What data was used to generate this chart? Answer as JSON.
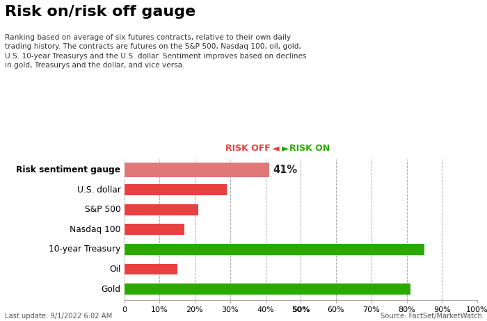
{
  "title": "Risk on/risk off gauge",
  "subtitle": "Ranking based on average of six futures contracts, relative to their own daily\ntrading history. The contracts are futures on the S&P 500, Nasdaq 100, oil, gold,\nU.S. 10-year Treasurys and the U.S. dollar. Sentiment improves based on declines\nin gold, Treasurys and the dollar, and vice versa.",
  "categories": [
    "Risk sentiment gauge",
    "U.S. dollar",
    "S&P 500",
    "Nasdaq 100",
    "10-year Treasury",
    "Oil",
    "Gold"
  ],
  "values": [
    41,
    29,
    21,
    17,
    85,
    15,
    81
  ],
  "colors": [
    "#e8878080",
    "#e84040",
    "#e84040",
    "#e84040",
    "#2aaa00",
    "#e84040",
    "#2aaa00"
  ],
  "gauge_color": "#e07878",
  "red_color": "#e84040",
  "green_color": "#2aaa00",
  "label_41": "41%",
  "risk_off_label": "RISK OFF",
  "risk_on_label": "RISK ON",
  "risk_off_color": "#e84040",
  "risk_on_color": "#2aaa00",
  "footer_left": "Last update: 9/1/2022 6:02 AM",
  "footer_right": "Source: FactSet/MarketWatch",
  "xlim": [
    0,
    100
  ],
  "xticks": [
    0,
    10,
    20,
    30,
    40,
    50,
    60,
    70,
    80,
    90,
    100
  ],
  "xtick_labels": [
    "0",
    "10%",
    "20%",
    "30%",
    "40%",
    "50%",
    "60%",
    "70%",
    "80%",
    "90%",
    "100%"
  ],
  "bold_xtick": "50%"
}
